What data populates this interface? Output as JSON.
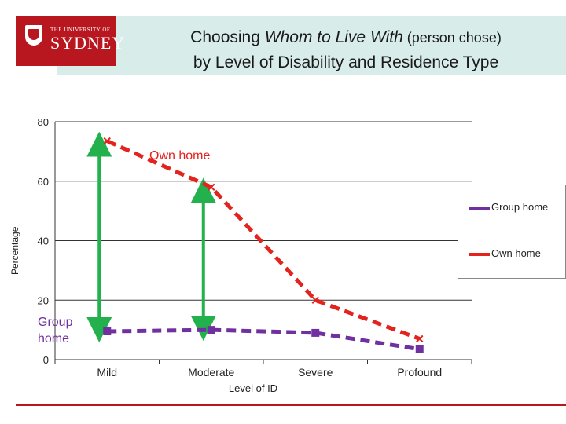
{
  "logo": {
    "small_text": "THE UNIVERSITY OF",
    "big_text": "SYDNEY"
  },
  "header": {
    "title_line1_a": "Choosing ",
    "title_line1_b": "Whom to Live With",
    "title_line1_c": " (person chose)",
    "title_line2": "by Level of Disability and Residence Type"
  },
  "colors": {
    "group_home": "#7030a0",
    "own_home": "#e3231e",
    "arrow": "#22b14c",
    "brand": "#b8171f"
  },
  "chart_data": {
    "type": "line",
    "categories": [
      "Mild",
      "Moderate",
      "Severe",
      "Profound"
    ],
    "series": [
      {
        "name": "Group home",
        "values": [
          9.5,
          10,
          9,
          3.5
        ]
      },
      {
        "name": "Own home",
        "values": [
          73.5,
          58,
          20,
          7
        ]
      }
    ],
    "ylim": [
      0,
      80
    ],
    "yticks": [
      "0",
      "20",
      "40",
      "60",
      "80"
    ],
    "xlabel": "Level of ID",
    "ylabel": "Percentage",
    "legend_position": "right",
    "grid": true,
    "annotations": [
      {
        "text": "Own home"
      },
      {
        "text": "Group\nhome"
      }
    ],
    "arrows": [
      {
        "category": "Mild",
        "from": 9.5,
        "to": 73.5
      },
      {
        "category": "Moderate",
        "from": 10,
        "to": 58
      }
    ]
  }
}
